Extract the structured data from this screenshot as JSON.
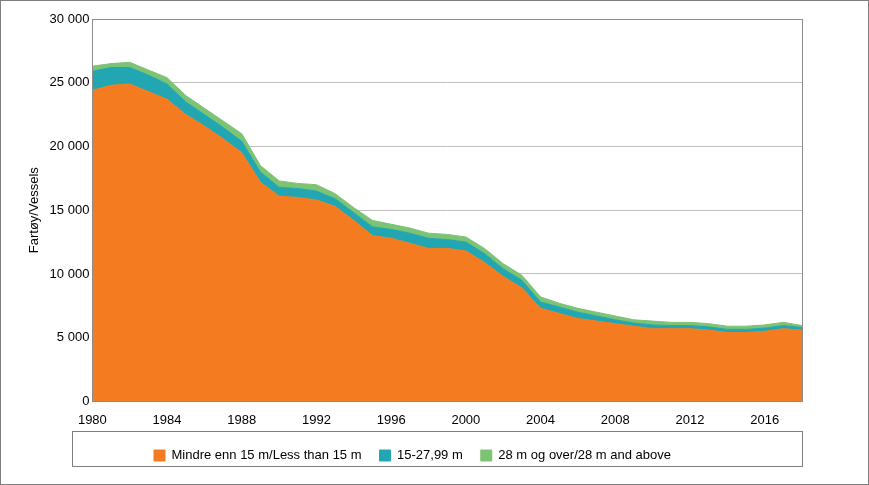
{
  "chart_data": {
    "type": "area",
    "stacked": true,
    "y_label": "Fartøy/Vessels",
    "x": [
      1980,
      1981,
      1982,
      1983,
      1984,
      1985,
      1986,
      1987,
      1988,
      1989,
      1990,
      1991,
      1992,
      1993,
      1994,
      1995,
      1996,
      1997,
      1998,
      1999,
      2000,
      2001,
      2002,
      2003,
      2004,
      2005,
      2006,
      2007,
      2008,
      2009,
      2010,
      2011,
      2012,
      2013,
      2014,
      2015,
      2016,
      2017,
      2018
    ],
    "xlim": [
      1980,
      2018
    ],
    "xticks": [
      1980,
      1984,
      1988,
      1992,
      1996,
      2000,
      2004,
      2008,
      2012,
      2016
    ],
    "ylim": [
      0,
      30000
    ],
    "yticks": [
      0,
      {
        "value": 5000,
        "label": "5 000"
      },
      {
        "value": 10000,
        "label": "10 000"
      },
      {
        "value": 15000,
        "label": "15 000"
      },
      {
        "value": 20000,
        "label": "20 000"
      },
      {
        "value": 25000,
        "label": "25 000"
      },
      {
        "value": 30000,
        "label": "30 000"
      }
    ],
    "grid": true,
    "legend": "bottom",
    "series": [
      {
        "name": "Mindre enn 15 m/Less than 15 m",
        "color": "#f47b20",
        "values": [
          24400,
          24800,
          24900,
          24300,
          23700,
          22500,
          21600,
          20600,
          19500,
          17200,
          16100,
          16000,
          15800,
          15300,
          14200,
          13000,
          12800,
          12400,
          12000,
          12000,
          11800,
          10900,
          9800,
          8900,
          7300,
          6900,
          6500,
          6300,
          6100,
          5900,
          5700,
          5700,
          5700,
          5600,
          5400,
          5400,
          5500,
          5700,
          5600
        ]
      },
      {
        "name": "15-27,99 m",
        "color": "#22a7b2",
        "values": [
          1500,
          1400,
          1300,
          1300,
          1200,
          1000,
          900,
          900,
          900,
          800,
          700,
          700,
          700,
          600,
          600,
          700,
          700,
          800,
          800,
          700,
          700,
          700,
          600,
          600,
          500,
          500,
          500,
          400,
          300,
          250,
          300,
          250,
          250,
          250,
          250,
          250,
          250,
          250,
          200
        ]
      },
      {
        "name": "28 m og over/28 m and above",
        "color": "#7dc374",
        "values": [
          400,
          300,
          400,
          400,
          500,
          500,
          500,
          500,
          600,
          500,
          500,
          400,
          500,
          400,
          400,
          500,
          400,
          400,
          400,
          400,
          400,
          400,
          400,
          400,
          400,
          300,
          300,
          300,
          300,
          250,
          300,
          250,
          250,
          250,
          250,
          250,
          250,
          250,
          150
        ]
      }
    ]
  }
}
